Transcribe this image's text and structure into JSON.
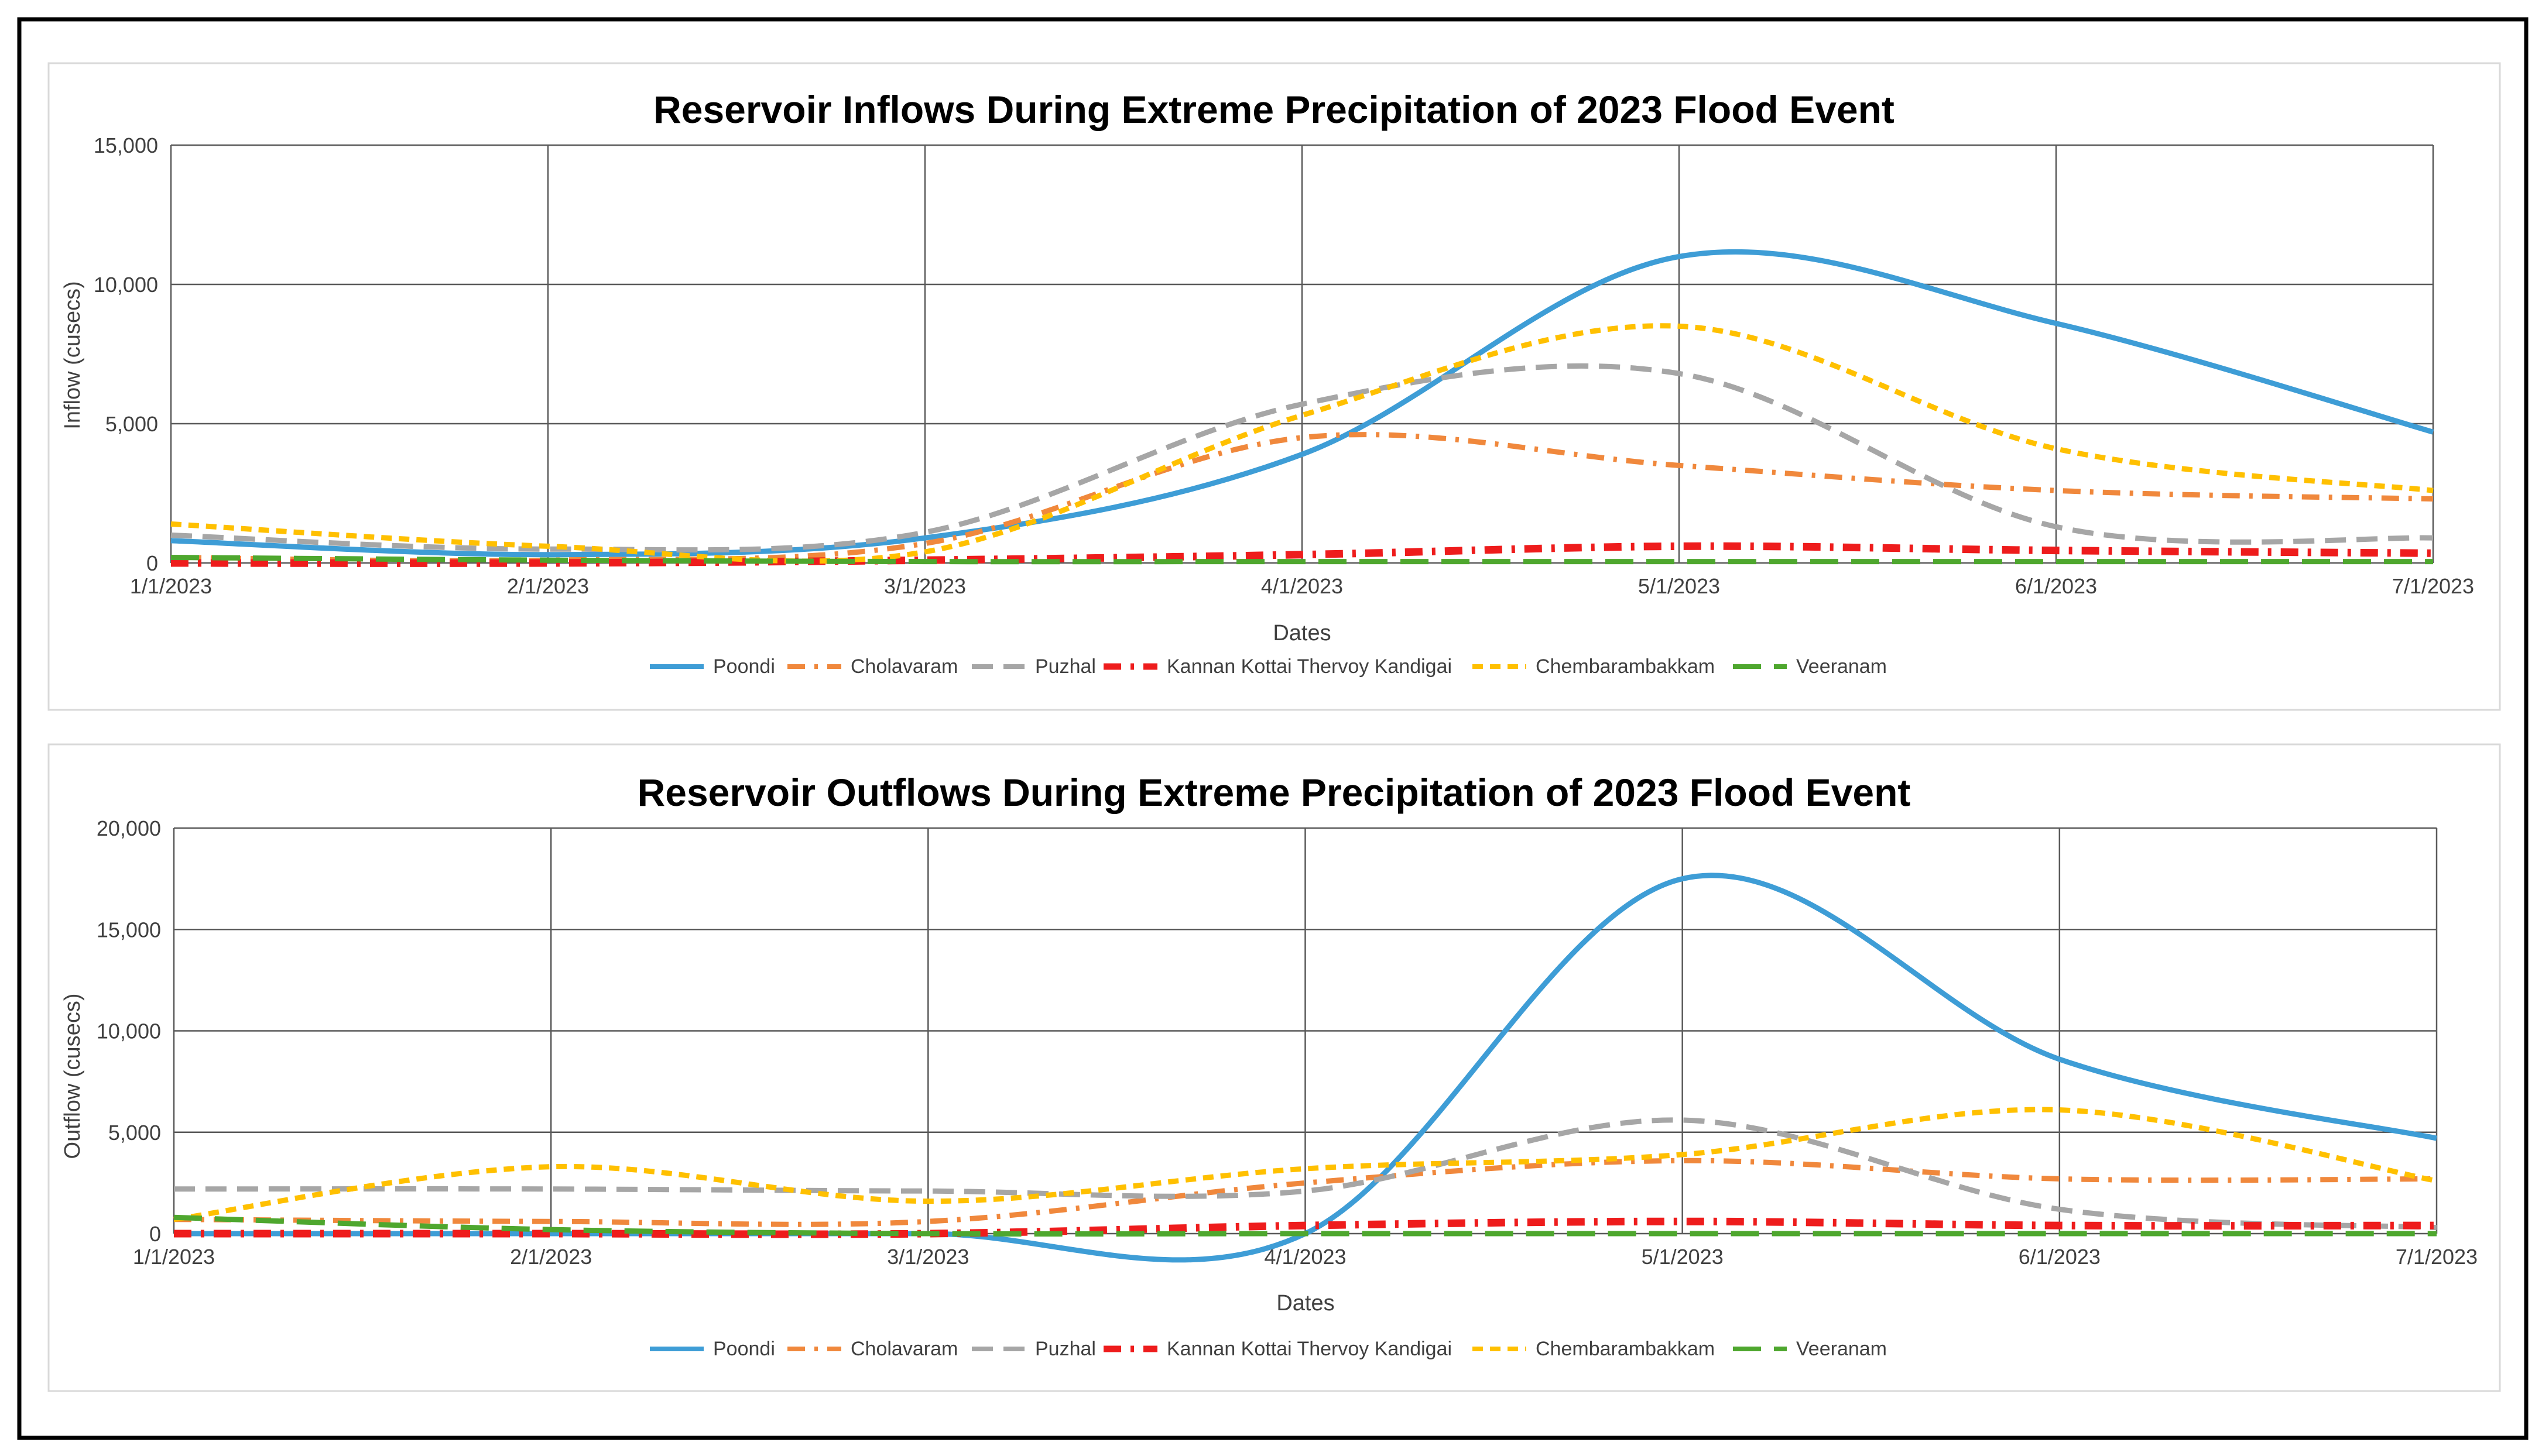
{
  "chart_data": [
    {
      "type": "line",
      "title": "Reservoir Inflows During Extreme Precipitation of 2023 Flood Event",
      "xlabel": "Dates",
      "ylabel": "Inflow (cusecs)",
      "categories": [
        "1/1/2023",
        "2/1/2023",
        "3/1/2023",
        "4/1/2023",
        "5/1/2023",
        "6/1/2023",
        "7/1/2023"
      ],
      "ylim": [
        0,
        15000
      ],
      "yticks": [
        0,
        5000,
        10000,
        15000
      ],
      "ytick_labels": [
        "0",
        "5,000",
        "10,000",
        "15,000"
      ],
      "grid": true,
      "legend_position": "bottom",
      "series": [
        {
          "name": "Poondi",
          "color": "#3e9dd6",
          "dash": "solid",
          "values": [
            800,
            300,
            900,
            3900,
            11000,
            8600,
            4700
          ]
        },
        {
          "name": "Cholavaram",
          "color": "#f0883c",
          "dash": "dashdot",
          "values": [
            200,
            100,
            700,
            4500,
            3500,
            2600,
            2300
          ]
        },
        {
          "name": "Puzhal",
          "color": "#a6a6a6",
          "dash": "dash",
          "values": [
            1000,
            500,
            1100,
            5700,
            6800,
            1300,
            900
          ]
        },
        {
          "name": "Kannan Kottai Thervoy Kandigai",
          "color": "#ee1c1c",
          "dash": "dashdot",
          "values": [
            0,
            0,
            100,
            300,
            600,
            450,
            350
          ]
        },
        {
          "name": "Chembarambakkam",
          "color": "#ffc000",
          "dash": "shortdash",
          "values": [
            1400,
            600,
            400,
            5300,
            8500,
            4100,
            2600
          ]
        },
        {
          "name": "Veeranam",
          "color": "#4ea72e",
          "dash": "longdash",
          "values": [
            200,
            100,
            50,
            50,
            50,
            50,
            50
          ]
        }
      ]
    },
    {
      "type": "line",
      "title": "Reservoir Outflows During Extreme Precipitation of 2023 Flood Event",
      "xlabel": "Dates",
      "ylabel": "Outflow (cusecs)",
      "categories": [
        "1/1/2023",
        "2/1/2023",
        "3/1/2023",
        "4/1/2023",
        "5/1/2023",
        "6/1/2023",
        "7/1/2023"
      ],
      "ylim": [
        0,
        20000
      ],
      "yticks": [
        0,
        5000,
        10000,
        15000,
        20000
      ],
      "ytick_labels": [
        "0",
        "5,000",
        "10,000",
        "15,000",
        "20,000"
      ],
      "grid": true,
      "legend_position": "bottom",
      "series": [
        {
          "name": "Poondi",
          "color": "#3e9dd6",
          "dash": "solid",
          "values": [
            0,
            0,
            0,
            0,
            17500,
            8600,
            4700
          ]
        },
        {
          "name": "Cholavaram",
          "color": "#f0883c",
          "dash": "dashdot",
          "values": [
            700,
            600,
            600,
            2500,
            3600,
            2700,
            2700
          ]
        },
        {
          "name": "Puzhal",
          "color": "#a6a6a6",
          "dash": "dash",
          "values": [
            2200,
            2200,
            2100,
            2100,
            5600,
            1200,
            300
          ]
        },
        {
          "name": "Kannan Kottai Thervoy Kandigai",
          "color": "#ee1c1c",
          "dash": "dashdot",
          "values": [
            0,
            0,
            0,
            400,
            600,
            400,
            400
          ]
        },
        {
          "name": "Chembarambakkam",
          "color": "#ffc000",
          "dash": "shortdash",
          "values": [
            700,
            3300,
            1600,
            3200,
            3900,
            6100,
            2600
          ]
        },
        {
          "name": "Veeranam",
          "color": "#4ea72e",
          "dash": "longdash",
          "values": [
            800,
            200,
            0,
            0,
            0,
            0,
            0
          ]
        }
      ]
    }
  ]
}
